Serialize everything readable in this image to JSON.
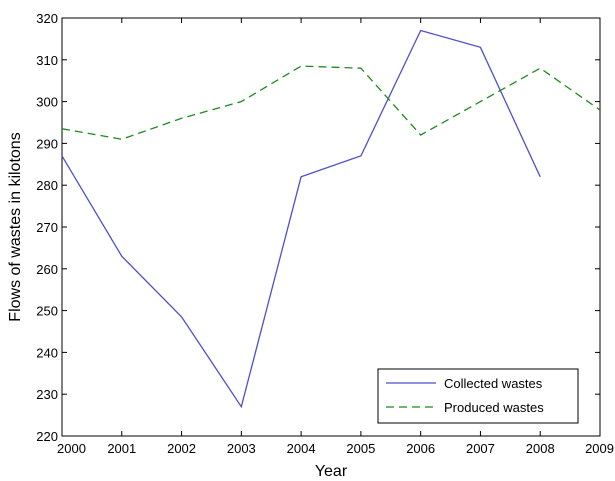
{
  "chart_data": {
    "type": "line",
    "title": "",
    "xlabel": "Year",
    "ylabel": "Flows of wastes in kilotons",
    "xlim": [
      2000,
      2009
    ],
    "ylim": [
      220,
      320
    ],
    "x_ticks": [
      "2000",
      "2001",
      "2002",
      "2003",
      "2004",
      "2005",
      "2006",
      "2007",
      "2008",
      "2009"
    ],
    "y_ticks": [
      "220",
      "230",
      "240",
      "250",
      "260",
      "270",
      "280",
      "290",
      "300",
      "310",
      "320"
    ],
    "grid": false,
    "legend_position": "bottom-right",
    "series": [
      {
        "name": "Collected wastes",
        "color": "#4f4fd0",
        "dash": "solid",
        "x": [
          2000,
          2001,
          2002,
          2003,
          2004,
          2005,
          2006,
          2007,
          2008
        ],
        "y": [
          287,
          263,
          248.5,
          227,
          282,
          287,
          317,
          313,
          282
        ]
      },
      {
        "name": "Produced wastes",
        "color": "#1e8a1e",
        "dash": "dashed",
        "x": [
          2000,
          2001,
          2002,
          2003,
          2004,
          2005,
          2006,
          2007,
          2008,
          2009
        ],
        "y": [
          293.5,
          291,
          296,
          300,
          308.5,
          308,
          292,
          300,
          308,
          298
        ]
      }
    ]
  }
}
